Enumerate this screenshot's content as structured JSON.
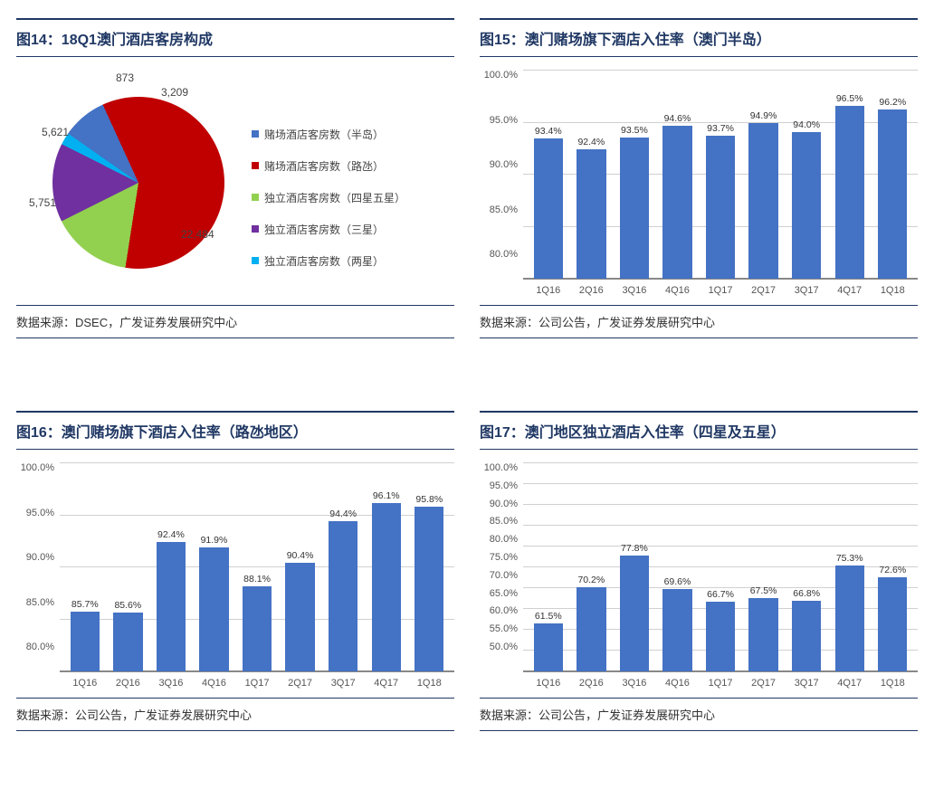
{
  "colors": {
    "title": "#203864",
    "bar": "#4472c4",
    "grid": "#d0d0d0",
    "axis": "#888888",
    "text": "#444444"
  },
  "panels": {
    "p14": {
      "title": "图14：18Q1澳门酒店客房构成",
      "source": "数据来源：DSEC，广发证券发展研究中心",
      "type": "pie",
      "slices": [
        {
          "label": "赌场酒店客房数（半岛）",
          "value": 3209,
          "color": "#4472c4"
        },
        {
          "label": "赌场酒店客房数（路氹）",
          "value": 22484,
          "color": "#c00000"
        },
        {
          "label": "独立酒店客房数（四星五星）",
          "value": 5751,
          "color": "#92d050"
        },
        {
          "label": "独立酒店客房数（三星）",
          "value": 5621,
          "color": "#7030a0"
        },
        {
          "label": "独立酒店客房数（两星）",
          "value": 873,
          "color": "#00b0f0"
        }
      ],
      "value_labels": [
        "3,209",
        "22,484",
        "5,751",
        "5,621",
        "873"
      ]
    },
    "p15": {
      "title": "图15：澳门赌场旗下酒店入住率（澳门半岛）",
      "source": "数据来源：公司公告，广发证券发展研究中心",
      "type": "bar",
      "ymin": 80,
      "ymax": 100,
      "ystep": 5,
      "yticks": [
        "100.0%",
        "95.0%",
        "90.0%",
        "85.0%",
        "80.0%"
      ],
      "categories": [
        "1Q16",
        "2Q16",
        "3Q16",
        "4Q16",
        "1Q17",
        "2Q17",
        "3Q17",
        "4Q17",
        "1Q18"
      ],
      "values": [
        93.4,
        92.4,
        93.5,
        94.6,
        93.7,
        94.9,
        94.0,
        96.5,
        96.2
      ],
      "value_labels": [
        "93.4%",
        "92.4%",
        "93.5%",
        "94.6%",
        "93.7%",
        "94.9%",
        "94.0%",
        "96.5%",
        "96.2%"
      ]
    },
    "p16": {
      "title": "图16：澳门赌场旗下酒店入住率（路氹地区）",
      "source": "数据来源：公司公告，广发证券发展研究中心",
      "type": "bar",
      "ymin": 80,
      "ymax": 100,
      "ystep": 5,
      "yticks": [
        "100.0%",
        "95.0%",
        "90.0%",
        "85.0%",
        "80.0%"
      ],
      "categories": [
        "1Q16",
        "2Q16",
        "3Q16",
        "4Q16",
        "1Q17",
        "2Q17",
        "3Q17",
        "4Q17",
        "1Q18"
      ],
      "values": [
        85.7,
        85.6,
        92.4,
        91.9,
        88.1,
        90.4,
        94.4,
        96.1,
        95.8
      ],
      "value_labels": [
        "85.7%",
        "85.6%",
        "92.4%",
        "91.9%",
        "88.1%",
        "90.4%",
        "94.4%",
        "96.1%",
        "95.8%"
      ]
    },
    "p17": {
      "title": "图17：澳门地区独立酒店入住率（四星及五星）",
      "source": "数据来源：公司公告，广发证券发展研究中心",
      "type": "bar",
      "ymin": 50,
      "ymax": 100,
      "ystep": 5,
      "yticks": [
        "100.0%",
        "95.0%",
        "90.0%",
        "85.0%",
        "80.0%",
        "75.0%",
        "70.0%",
        "65.0%",
        "60.0%",
        "55.0%",
        "50.0%"
      ],
      "categories": [
        "1Q16",
        "2Q16",
        "3Q16",
        "4Q16",
        "1Q17",
        "2Q17",
        "3Q17",
        "4Q17",
        "1Q18"
      ],
      "values": [
        61.5,
        70.2,
        77.8,
        69.6,
        66.7,
        67.5,
        66.8,
        75.3,
        72.6
      ],
      "value_labels": [
        "61.5%",
        "70.2%",
        "77.8%",
        "69.6%",
        "66.7%",
        "67.5%",
        "66.8%",
        "75.3%",
        "72.6%"
      ]
    }
  }
}
